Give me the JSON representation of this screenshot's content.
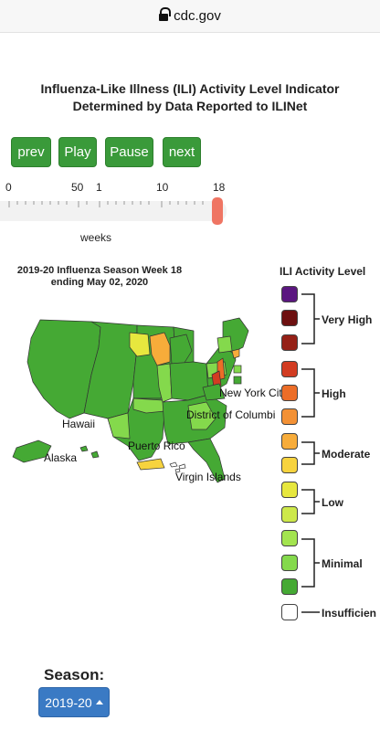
{
  "browser": {
    "url": "cdc.gov"
  },
  "page": {
    "title_line1": "Influenza-Like Illness (ILI) Activity Level Indicator",
    "title_line2": "Determined by Data Reported to ILINet"
  },
  "controls": {
    "prev": "prev",
    "play": "Play",
    "pause": "Pause",
    "next": "next"
  },
  "slider": {
    "tick_labels": [
      "0",
      "50",
      "1",
      "10",
      "18"
    ],
    "unit_label": "weeks",
    "current_week": 18
  },
  "map": {
    "title_line1": "2019-20 Influenza Season Week 18",
    "title_line2": "ending May 02, 2020",
    "labels": {
      "hawaii": "Hawaii",
      "alaska": "Alaska",
      "puerto_rico": "Puerto Rico",
      "virgin_islands": "Virgin Islands",
      "new_york_city": "New York Cit",
      "dc": "District of Columbi"
    }
  },
  "legend": {
    "title": "ILI Activity Level",
    "swatches": [
      "#5b1680",
      "#6d1010",
      "#952016",
      "#d23c22",
      "#ec6d27",
      "#f39135",
      "#f7ac3a",
      "#f7d33e",
      "#e7e73e",
      "#cde84a",
      "#a3e44f",
      "#84d94c",
      "#45a934",
      "#ffffff"
    ],
    "groups": {
      "very_high": "Very High",
      "high": "High",
      "moderate": "Moderate",
      "low": "Low",
      "minimal": "Minimal",
      "insufficient": "Insufficien"
    }
  },
  "season": {
    "label": "Season:",
    "selected": "2019-20"
  },
  "colors": {
    "button_green": "#3a9a3a",
    "select_blue": "#3a7ac4",
    "map_minimal_dark": "#45a934",
    "map_minimal_light": "#84d94c",
    "map_low": "#e7e73e",
    "map_moderate": "#f7ac3a",
    "map_high": "#ec6d27",
    "slider_handle": "#ef7563"
  }
}
